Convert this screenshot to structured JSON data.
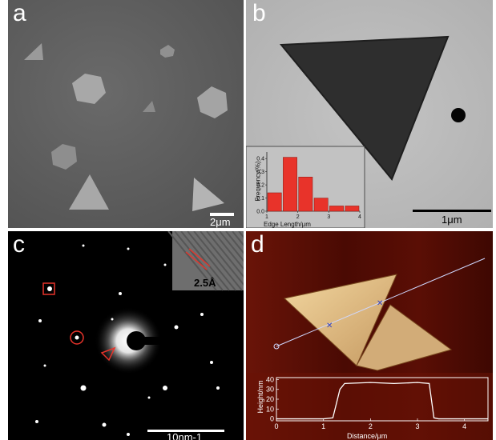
{
  "panels": {
    "a": {
      "label": "a",
      "scale_text": "2μm"
    },
    "b": {
      "label": "b",
      "scale_text": "1μm",
      "inset": {
        "ylabel": "Frequency(%)",
        "xlabel": "Edge Length/μm",
        "yticks": [
          "0.0",
          "0.1",
          "0.2",
          "0.3",
          "0.4"
        ],
        "xticks": [
          "1",
          "2",
          "3",
          "4"
        ]
      }
    },
    "c": {
      "label": "c",
      "scale_text": "10nm-1",
      "lattice_text": "2.5Å"
    },
    "d": {
      "label": "d",
      "profile": {
        "ylabel": "Height/nm",
        "xlabel": "Distance/μm",
        "yticks": [
          "0",
          "10",
          "20",
          "30",
          "40"
        ],
        "xticks": [
          "0",
          "1",
          "2",
          "3",
          "4"
        ]
      }
    }
  },
  "chart_data": [
    {
      "type": "bar",
      "panel": "b-inset",
      "xlabel": "Edge Length/μm",
      "ylabel": "Frequency(%)",
      "ylim": [
        0,
        0.45
      ],
      "xlim": [
        1,
        4
      ],
      "bin_edges": [
        1.0,
        1.5,
        2.0,
        2.5,
        3.0,
        3.5,
        4.0
      ],
      "values": [
        0.14,
        0.41,
        0.26,
        0.1,
        0.04,
        0.04
      ],
      "colors": {
        "bar": "#e8332a"
      }
    },
    {
      "type": "line",
      "panel": "d-profile",
      "xlabel": "Distance/μm",
      "ylabel": "Height/nm",
      "xlim": [
        0,
        4.5
      ],
      "ylim": [
        -2,
        42
      ],
      "x": [
        0,
        1.0,
        1.2,
        1.35,
        1.45,
        2.0,
        2.5,
        3.0,
        3.25,
        3.35,
        3.45,
        4.5
      ],
      "y": [
        0,
        0,
        1,
        30,
        36,
        37,
        36,
        37,
        36,
        1,
        0,
        0
      ]
    }
  ]
}
